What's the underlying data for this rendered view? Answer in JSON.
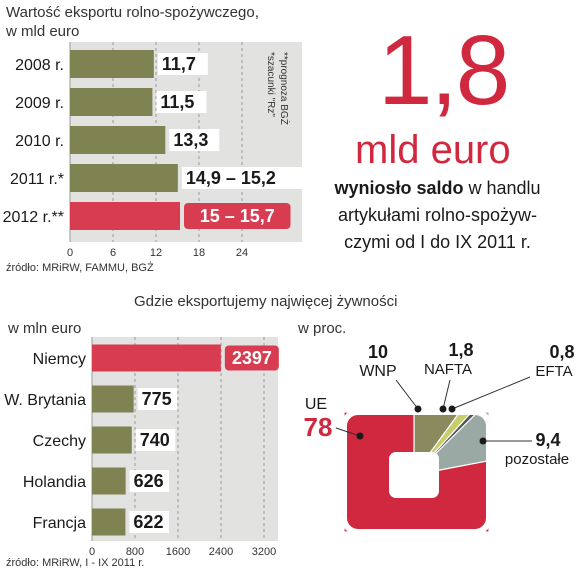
{
  "top_chart_title": "Wartość eksportu rolno-spożywczego,",
  "top_chart_subtitle": "w mld euro",
  "top_chart_notes": [
    "*szacunki \"Rz\"",
    "**prognoza BGŻ"
  ],
  "top_chart_source": "źródło: MRiRW, FAMMU, BGŻ",
  "highlight": {
    "value": "1,8",
    "unit": "mld euro",
    "desc_bold": "wyniosło saldo",
    "desc_line1_rest": " w handlu",
    "desc_line2": "artykułami rolno-spożyw-",
    "desc_line3": "czymi od I do IX 2011 r."
  },
  "section_title": "Gdzie eksportujemy najwięcej żywności",
  "bottom_left_unit": "w mln euro",
  "bottom_right_unit": "w proc.",
  "bottom_source": "źródło: MRiRW, I - IX 2011 r.",
  "colors": {
    "olive_bar": "#7f8352",
    "highlight_bar": "#d73c50",
    "chart_bg": "#e2e2e0",
    "ue_red": "#d0283e",
    "wnp": "#8a8a5e",
    "nafta": "#c9cc6a",
    "efta": "#4f5a54",
    "other": "#9aa9a4"
  },
  "chart_data": [
    {
      "type": "bar",
      "orientation": "horizontal",
      "categories": [
        "2008 r.",
        "2009 r.",
        "2010 r.",
        "2011 r.*",
        "2012 r.**"
      ],
      "values": [
        11.7,
        11.5,
        13.3,
        15.05,
        15.35
      ],
      "value_labels": [
        "11,7",
        "11,5",
        "13,3",
        "14,9 – 15,2",
        "15 – 15,7"
      ],
      "highlighted": [
        false,
        false,
        false,
        false,
        true
      ],
      "xticks": [
        0,
        6,
        12,
        18,
        24
      ],
      "xlim": [
        0,
        24
      ]
    },
    {
      "type": "bar",
      "orientation": "horizontal",
      "categories": [
        "Niemcy",
        "W. Brytania",
        "Czechy",
        "Holandia",
        "Francja"
      ],
      "values": [
        2397,
        775,
        740,
        626,
        622
      ],
      "value_labels": [
        "2397",
        "775",
        "740",
        "626",
        "622"
      ],
      "highlighted": [
        true,
        false,
        false,
        false,
        false
      ],
      "xticks": [
        0,
        800,
        1600,
        2400,
        3200
      ],
      "xlim": [
        0,
        3200
      ]
    },
    {
      "type": "pie",
      "labels": [
        "UE",
        "WNP",
        "NAFTA",
        "EFTA",
        "pozostałe"
      ],
      "values": [
        78,
        10,
        1.8,
        0.8,
        9.4
      ],
      "value_labels": [
        "78",
        "10",
        "1,8",
        "0,8",
        "9,4"
      ]
    }
  ]
}
